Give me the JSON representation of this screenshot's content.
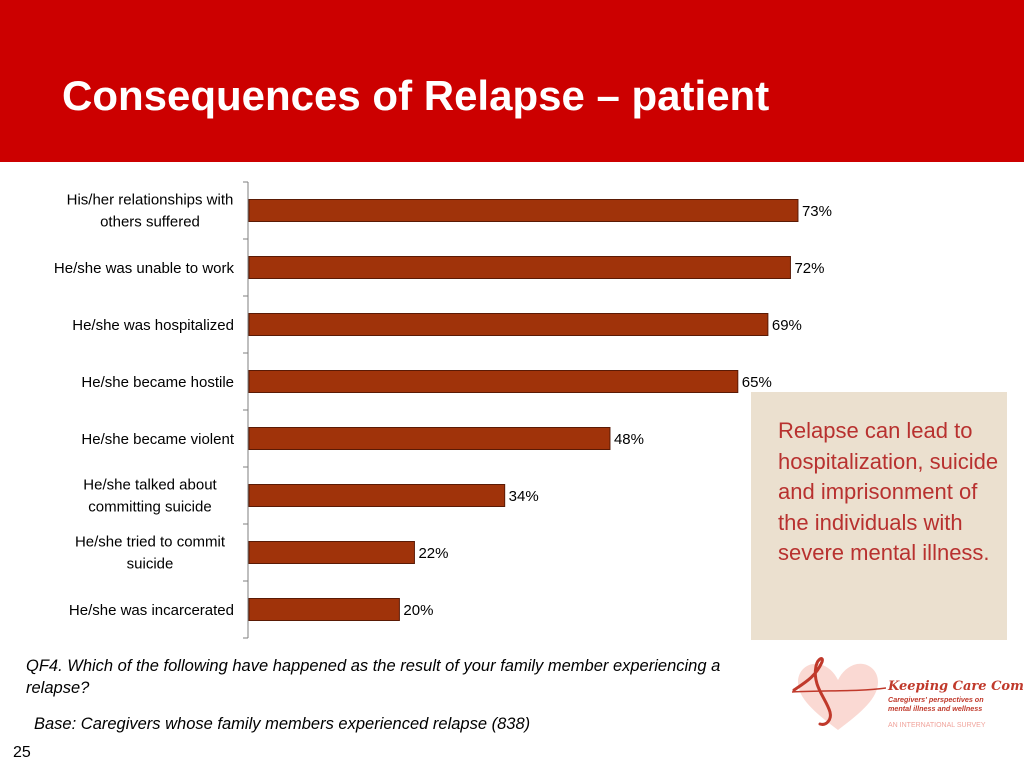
{
  "slide": {
    "title": "Consequences of Relapse – patient",
    "page_number": "25",
    "callout_text": "Relapse can lead to hospitalization, suicide and imprisonment of the individuals with severe mental illness.",
    "question_text": "QF4. Which of the following have happened as the result of your family member experiencing  a relapse?",
    "base_text": "Base: Caregivers whose family members experienced relapse (838)"
  },
  "logo": {
    "brand": "Keeping Care Complete",
    "subtitle": "Caregivers' perspectives on mental illness and wellness",
    "survey": "AN INTERNATIONAL SURVEY",
    "icon": "heart-logo-icon"
  },
  "colors": {
    "header": "#cc0000",
    "bar_fill": "#a0330a",
    "bar_stroke": "#5a1a05",
    "callout_bg": "#ebe0cf",
    "callout_text": "#b8312f"
  },
  "chart_data": {
    "type": "bar",
    "orientation": "horizontal",
    "title": "",
    "xlabel": "",
    "ylabel": "",
    "xlim": [
      0,
      100
    ],
    "grid": false,
    "legend": "none",
    "categories": [
      "His/her relationships with others suffered",
      "He/she was unable to work",
      "He/she was hospitalized",
      "He/she became hostile",
      "He/she became violent",
      "He/she talked about committing suicide",
      "He/she tried to commit suicide",
      "He/she was incarcerated"
    ],
    "values": [
      73,
      72,
      69,
      65,
      48,
      34,
      22,
      20
    ],
    "data_labels": [
      "73%",
      "72%",
      "69%",
      "65%",
      "48%",
      "34%",
      "22%",
      "20%"
    ]
  }
}
